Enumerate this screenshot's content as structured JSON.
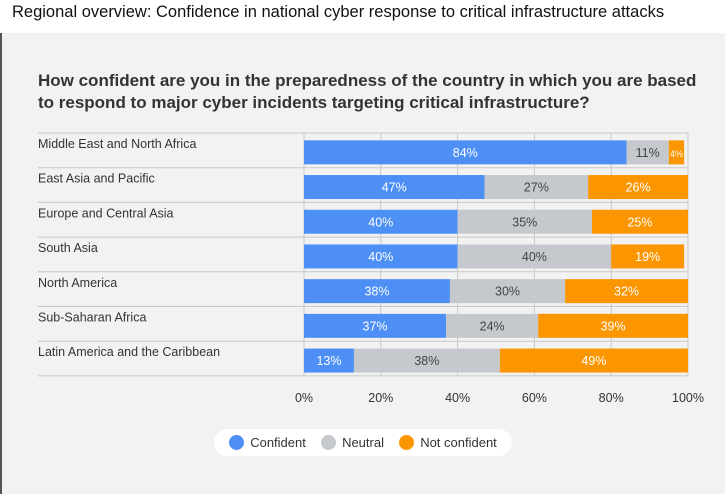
{
  "header": {
    "title": "Regional overview: Confidence in national cyber response to critical infrastructure attacks"
  },
  "chart_data": {
    "type": "bar",
    "orientation": "horizontal",
    "stacked": true,
    "title": "How confident are you in the preparedness of the country in which you are based to respond to major cyber incidents targeting critical infrastructure?",
    "categories": [
      "Middle East and North Africa",
      "East Asia and Pacific",
      "Europe and Central Asia",
      "South Asia",
      "North America",
      "Sub-Saharan Africa",
      "Latin America and the Caribbean"
    ],
    "series": [
      {
        "name": "Confident",
        "color": "#4d8ff5",
        "values": [
          84,
          47,
          40,
          40,
          38,
          37,
          13
        ]
      },
      {
        "name": "Neutral",
        "color": "#c5c9cd",
        "values": [
          11,
          27,
          35,
          40,
          30,
          24,
          38
        ]
      },
      {
        "name": "Not confident",
        "color": "#fb9600",
        "values": [
          4,
          26,
          25,
          19,
          32,
          39,
          49
        ]
      }
    ],
    "xlim": [
      0,
      100
    ],
    "xticks": [
      "0%",
      "20%",
      "40%",
      "60%",
      "80%",
      "100%"
    ],
    "legend_position": "bottom",
    "grid": true
  }
}
